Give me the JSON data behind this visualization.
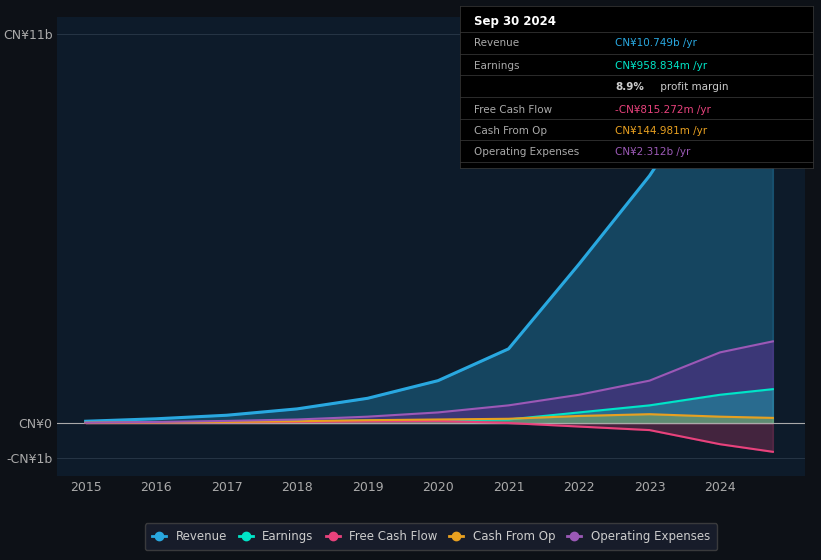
{
  "background_color": "#0d1117",
  "plot_bg_color": "#0d1b2a",
  "years": [
    2015,
    2016,
    2017,
    2018,
    2019,
    2020,
    2021,
    2022,
    2023,
    2024,
    2024.75
  ],
  "revenue": [
    0.05,
    0.12,
    0.22,
    0.4,
    0.7,
    1.2,
    2.1,
    4.5,
    7.0,
    10.0,
    10.749
  ],
  "earnings": [
    0.01,
    0.02,
    0.03,
    0.05,
    0.07,
    0.08,
    0.1,
    0.3,
    0.5,
    0.8,
    0.959
  ],
  "free_cash_flow": [
    0.0,
    0.01,
    0.02,
    0.03,
    0.05,
    0.06,
    0.0,
    -0.1,
    -0.2,
    -0.6,
    -0.815
  ],
  "cash_from_op": [
    0.01,
    0.02,
    0.03,
    0.05,
    0.08,
    0.1,
    0.12,
    0.2,
    0.25,
    0.18,
    0.145
  ],
  "op_expenses": [
    0.01,
    0.03,
    0.06,
    0.1,
    0.18,
    0.3,
    0.5,
    0.8,
    1.2,
    2.0,
    2.312
  ],
  "revenue_color": "#29a8e0",
  "earnings_color": "#00e5c8",
  "fcf_color": "#e8427c",
  "cfop_color": "#e8a020",
  "opex_color": "#9b59b6",
  "opex_fill_color": "#5b2c8a",
  "ylim_min": -1.5,
  "ylim_max": 11.5,
  "yticks": [
    -1,
    0,
    11
  ],
  "ytick_labels": [
    "-CN¥1b",
    "CN¥0",
    "CN¥11b"
  ],
  "xticks": [
    2015,
    2016,
    2017,
    2018,
    2019,
    2020,
    2021,
    2022,
    2023,
    2024
  ],
  "grid_color": "#2a3a4a",
  "zero_line_color": "#aaaaaa",
  "info_box_title": "Sep 30 2024",
  "info_rows": [
    {
      "label": "Revenue",
      "value": "CN¥10.749b /yr",
      "value_color": "#29a8e0",
      "bold_part": null
    },
    {
      "label": "Earnings",
      "value": "CN¥958.834m /yr",
      "value_color": "#00e5c8",
      "bold_part": null
    },
    {
      "label": "",
      "value": " profit margin",
      "value_color": "#cccccc",
      "bold_part": "8.9%"
    },
    {
      "label": "Free Cash Flow",
      "value": "-CN¥815.272m /yr",
      "value_color": "#e8427c",
      "bold_part": null
    },
    {
      "label": "Cash From Op",
      "value": "CN¥144.981m /yr",
      "value_color": "#e8a020",
      "bold_part": null
    },
    {
      "label": "Operating Expenses",
      "value": "CN¥2.312b /yr",
      "value_color": "#9b59b6",
      "bold_part": null
    }
  ],
  "legend": [
    {
      "label": "Revenue",
      "color": "#29a8e0"
    },
    {
      "label": "Earnings",
      "color": "#00e5c8"
    },
    {
      "label": "Free Cash Flow",
      "color": "#e8427c"
    },
    {
      "label": "Cash From Op",
      "color": "#e8a020"
    },
    {
      "label": "Operating Expenses",
      "color": "#9b59b6"
    }
  ]
}
